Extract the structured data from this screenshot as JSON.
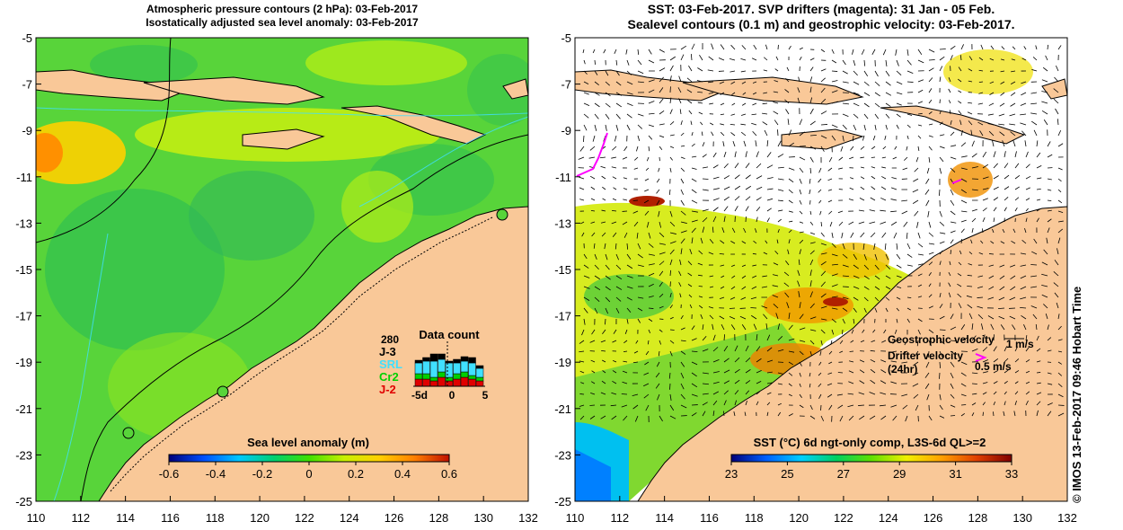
{
  "left_panel": {
    "title_line1": "Atmospheric pressure contours (2 hPa): 03-Feb-2017",
    "title_line2": "Isostatically adjusted sea level anomaly: 03-Feb-2017",
    "colorbar_label": "Sea level anomaly (m)",
    "colorbar_ticks": [
      "-0.6",
      "-0.4",
      "-0.2",
      "0",
      "0.2",
      "0.4",
      "0.6"
    ],
    "colorbar_colors": [
      "#00007a",
      "#0050ff",
      "#00c8ff",
      "#00d070",
      "#40e000",
      "#c8f000",
      "#ffd000",
      "#ff8000",
      "#c01000"
    ],
    "inset": {
      "title": "Data count",
      "max_label": "280",
      "legend": [
        {
          "name": "J-3",
          "color": "#000000"
        },
        {
          "name": "SRL",
          "color": "#40e0ff"
        },
        {
          "name": "Cr2",
          "color": "#00d000"
        },
        {
          "name": "J-2",
          "color": "#e00000"
        }
      ],
      "x_ticks": [
        "-5d",
        "0",
        "5"
      ]
    }
  },
  "right_panel": {
    "title_line1": "SST: 03-Feb-2017. SVP drifters (magenta): 31 Jan - 05 Feb.",
    "title_line2": "Sealevel contours (0.1 m) and geostrophic velocity: 03-Feb-2017.",
    "colorbar_label": "SST (°C) 6d ngt-only comp, L3S-6d QL>=2",
    "colorbar_ticks": [
      "23",
      "25",
      "27",
      "29",
      "31",
      "33"
    ],
    "colorbar_colors": [
      "#00007a",
      "#0060ff",
      "#00d0ff",
      "#00d060",
      "#60e000",
      "#f0f000",
      "#ffa000",
      "#e04000",
      "#800000"
    ],
    "geostrophic_label": "Geostrophic velocity",
    "geostrophic_scale": "1 m/s",
    "drifter_label_1": "Drifter velocity",
    "drifter_label_2": "(24hr)",
    "drifter_scale": "0.5 m/s"
  },
  "axes": {
    "x_ticks": [
      "110",
      "112",
      "114",
      "116",
      "118",
      "120",
      "122",
      "124",
      "126",
      "128",
      "130",
      "132"
    ],
    "y_ticks": [
      "-5",
      "-7",
      "-9",
      "-11",
      "-13",
      "-15",
      "-17",
      "-19",
      "-21",
      "-23",
      "-25"
    ],
    "lon_range": [
      110,
      132
    ],
    "lat_range": [
      -25,
      -5
    ]
  },
  "colors": {
    "land": "#f9c898",
    "ocean_sla": "#5cd836",
    "drifter": "#ff00ff"
  },
  "credit": "© IMOS 13-Feb-2017 09:46 Hobart Time"
}
